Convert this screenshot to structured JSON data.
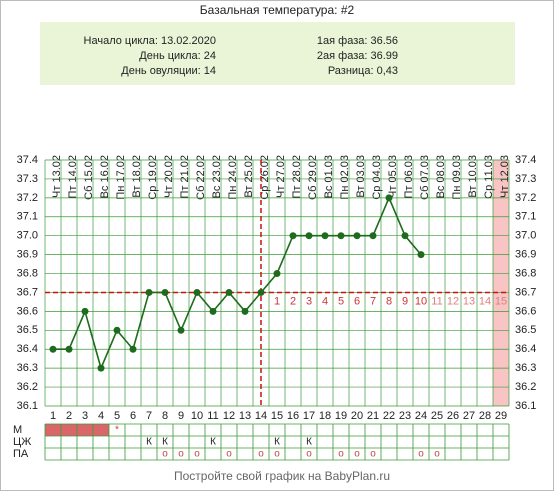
{
  "chart_data": {
    "type": "line",
    "title": "Базальная температура: #2",
    "info_left": [
      "Начало цикла: 13.02.2020",
      "День цикла: 24",
      "День овуляции: 14"
    ],
    "info_right": [
      "1ая фаза: 36.56",
      "2ая фаза: 36.99",
      "Разница: 0,43"
    ],
    "categories": [
      "Чт 13.02",
      "Пт 14.02",
      "Сб 15.02",
      "Вс 16.02",
      "Пн 17.02",
      "Вт 18.02",
      "Ср 19.02",
      "Чт 20.02",
      "Пт 21.02",
      "Сб 22.02",
      "Вс 23.02",
      "Пн 24.02",
      "Вт 25.02",
      "Ср 26.02",
      "Чт 27.02",
      "Пт 28.02",
      "Сб 29.02",
      "Вс 01.03",
      "Пн 02.03",
      "Вт 03.03",
      "Ср 04.03",
      "Чт 05.03",
      "Пт 06.03",
      "Сб 07.03",
      "Вс 08.03",
      "Пн 09.03",
      "Вт 10.03",
      "Ср 11.03",
      "Чт 12.03"
    ],
    "x": [
      1,
      2,
      3,
      4,
      5,
      6,
      7,
      8,
      9,
      10,
      11,
      12,
      13,
      14,
      15,
      16,
      17,
      18,
      19,
      20,
      21,
      22,
      23,
      24,
      25,
      26,
      27,
      28,
      29
    ],
    "xticks": [
      1,
      2,
      3,
      4,
      5,
      6,
      7,
      8,
      9,
      10,
      11,
      12,
      13,
      14,
      15,
      16,
      17,
      18,
      19,
      20,
      21,
      22,
      23,
      24,
      25,
      26,
      27,
      28,
      29
    ],
    "xlim": [
      0.5,
      29.5
    ],
    "series": [
      {
        "color": "#1e6b1e",
        "values": [
          36.4,
          36.4,
          36.6,
          36.3,
          36.5,
          36.4,
          36.7,
          36.7,
          36.5,
          36.7,
          36.6,
          36.7,
          36.6,
          36.7,
          36.8,
          37.0,
          37.0,
          37.0,
          37.0,
          37.0,
          37.0,
          37.2,
          37.0,
          36.9,
          null,
          null,
          null,
          null,
          null
        ]
      }
    ],
    "ylim": [
      36.1,
      37.4
    ],
    "yticks": [
      36.1,
      36.2,
      36.3,
      36.4,
      36.5,
      36.6,
      36.7,
      36.8,
      36.9,
      {
        "value": 37,
        "label": "37.0"
      },
      37.1,
      37.2,
      37.3,
      37.4
    ],
    "grid": true,
    "coverline": 36.7,
    "ovulation_day": 14,
    "phase_days": [
      1,
      2,
      3,
      4,
      5,
      6,
      7,
      8,
      9,
      10,
      11,
      12,
      13,
      14,
      15
    ],
    "highlight_day": 29,
    "rows": [
      {
        "label": "М",
        "filled_days": [
          1,
          2,
          3,
          4
        ],
        "entries": [
          {
            "day": 5,
            "text": "*"
          }
        ]
      },
      {
        "label": "ЦЖ",
        "entries": [
          {
            "day": 7,
            "text": "К"
          },
          {
            "day": 8,
            "text": "К"
          },
          {
            "day": 11,
            "text": "К"
          },
          {
            "day": 15,
            "text": "К"
          },
          {
            "day": 17,
            "text": "К"
          }
        ]
      },
      {
        "label": "ПА",
        "entries": [
          {
            "day": 8,
            "text": "о"
          },
          {
            "day": 9,
            "text": "о"
          },
          {
            "day": 10,
            "text": "о"
          },
          {
            "day": 12,
            "text": "о"
          },
          {
            "day": 14,
            "text": "о"
          },
          {
            "day": 15,
            "text": "о"
          },
          {
            "day": 17,
            "text": "о"
          },
          {
            "day": 19,
            "text": "о"
          },
          {
            "day": 20,
            "text": "о"
          },
          {
            "day": 21,
            "text": "о"
          },
          {
            "day": 24,
            "text": "о"
          },
          {
            "day": 25,
            "text": "о"
          }
        ]
      }
    ],
    "footer": "Постройте свой график на BabyPlan.ru"
  }
}
